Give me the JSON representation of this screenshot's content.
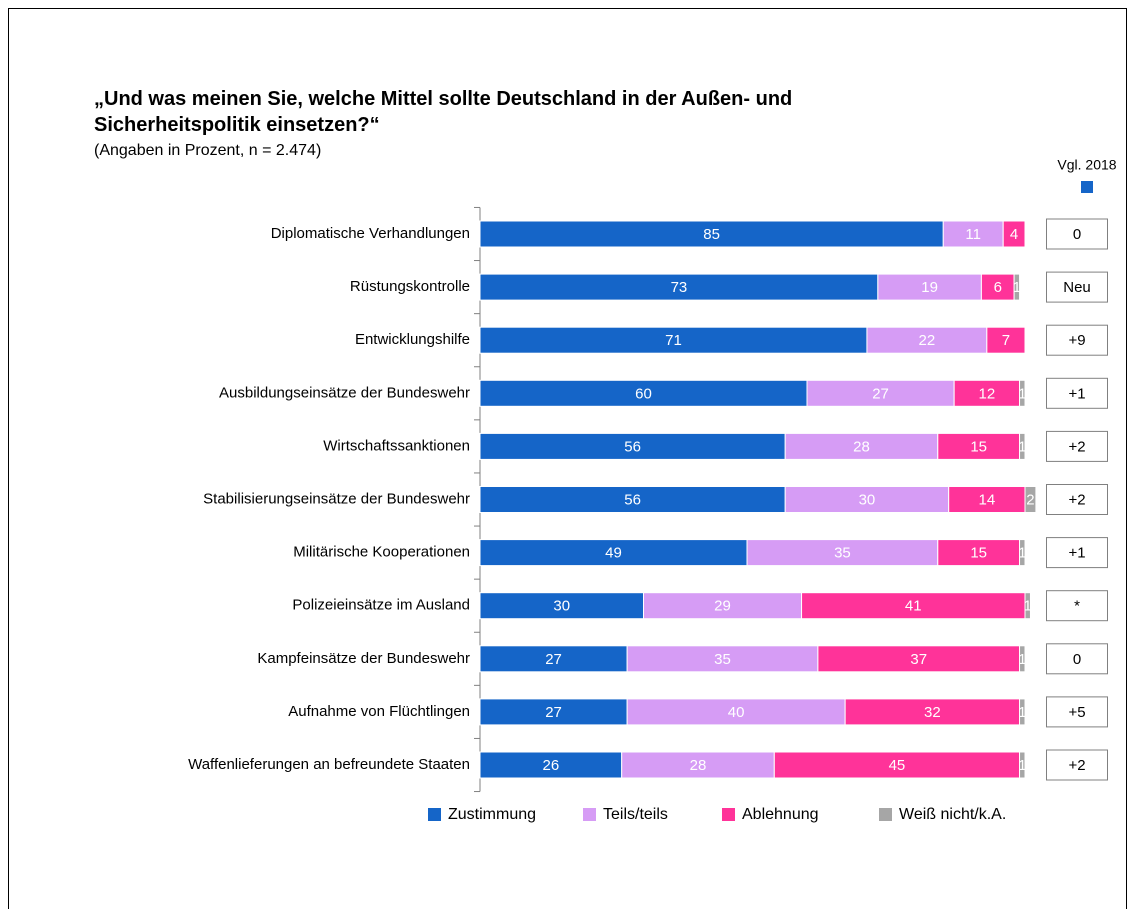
{
  "chart_data": {
    "type": "stacked_barh",
    "title": "„Und was meinen Sie, welche Mittel sollte Deutschland in der Außen- und Sicherheitspolitik einsetzen?“",
    "subtitle": "(Angaben in Prozent, n = 2.474)",
    "categories": [
      "Diplomatische Verhandlungen",
      "Rüstungskontrolle",
      "Entwicklungshilfe",
      "Ausbildungseinsätze der Bundeswehr",
      "Wirtschaftssanktionen",
      "Stabilisierungseinsätze der Bundeswehr",
      "Militärische Kooperationen",
      "Polizeieinsätze im Ausland",
      "Kampfeinsätze der Bundeswehr",
      "Aufnahme von Flüchtlingen",
      "Waffenlieferungen an befreundete Staaten"
    ],
    "series": [
      {
        "name": "Zustimmung",
        "color": "#1565c8",
        "values": [
          85,
          73,
          71,
          60,
          56,
          56,
          49,
          30,
          27,
          27,
          26
        ]
      },
      {
        "name": "Teils/teils",
        "color": "#d69cf5",
        "values": [
          11,
          19,
          22,
          27,
          28,
          30,
          35,
          29,
          35,
          40,
          28
        ]
      },
      {
        "name": "Ablehnung",
        "color": "#ff3399",
        "values": [
          4,
          6,
          7,
          12,
          15,
          14,
          15,
          41,
          37,
          32,
          45
        ]
      },
      {
        "name": "Weiß nicht/k.A.",
        "color": "#a6a6a6",
        "values": [
          null,
          1,
          null,
          1,
          1,
          2,
          1,
          1,
          1,
          1,
          1
        ]
      }
    ],
    "xlim": [
      0,
      100
    ],
    "comparison": {
      "title": "Vgl. 2018",
      "values": [
        "0",
        "Neu",
        "+9",
        "+1",
        "+2",
        "+2",
        "+1",
        "*",
        "0",
        "+5",
        "+2"
      ]
    }
  }
}
